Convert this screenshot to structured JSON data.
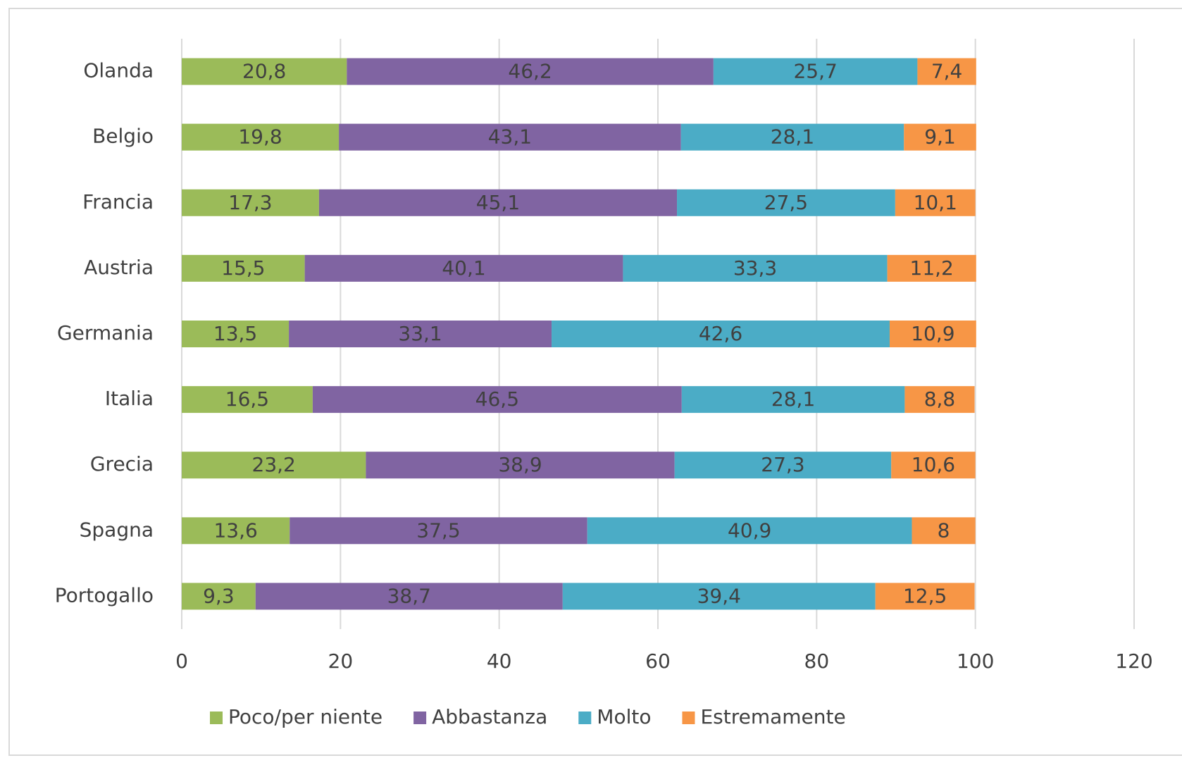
{
  "chart_data": {
    "type": "stacked-bar-horizontal",
    "categories": [
      "Olanda",
      "Belgio",
      "Francia",
      "Austria",
      "Germania",
      "Italia",
      "Grecia",
      "Spagna",
      "Portogallo"
    ],
    "series": [
      {
        "name": "Poco/per niente",
        "color": "#9bbb59",
        "values": [
          20.8,
          19.8,
          17.3,
          15.5,
          13.5,
          16.5,
          23.2,
          13.6,
          9.3
        ],
        "value_labels": [
          "20,8",
          "19,8",
          "17,3",
          "15,5",
          "13,5",
          "16,5",
          "23,2",
          "13,6",
          "9,3"
        ]
      },
      {
        "name": "Abbastanza",
        "color": "#8064a2",
        "values": [
          46.2,
          43.1,
          45.1,
          40.1,
          33.1,
          46.5,
          38.9,
          37.5,
          38.7
        ],
        "value_labels": [
          "46,2",
          "43,1",
          "45,1",
          "40,1",
          "33,1",
          "46,5",
          "38,9",
          "37,5",
          "38,7"
        ]
      },
      {
        "name": "Molto",
        "color": "#4bacc6",
        "values": [
          25.7,
          28.1,
          27.5,
          33.3,
          42.6,
          28.1,
          27.3,
          40.9,
          39.4
        ],
        "value_labels": [
          "25,7",
          "28,1",
          "27,5",
          "33,3",
          "42,6",
          "28,1",
          "27,3",
          "40,9",
          "39,4"
        ]
      },
      {
        "name": "Estremamente",
        "color": "#f79646",
        "values": [
          7.4,
          9.1,
          10.1,
          11.2,
          10.9,
          8.8,
          10.6,
          8,
          12.5
        ],
        "value_labels": [
          "7,4",
          "9,1",
          "10,1",
          "11,2",
          "10,9",
          "8,8",
          "10,6",
          "8",
          "12,5"
        ]
      }
    ],
    "xlim": [
      0,
      120
    ],
    "xticks": [
      0,
      20,
      40,
      60,
      80,
      100,
      120
    ],
    "grid": true,
    "legend": "bottom"
  }
}
